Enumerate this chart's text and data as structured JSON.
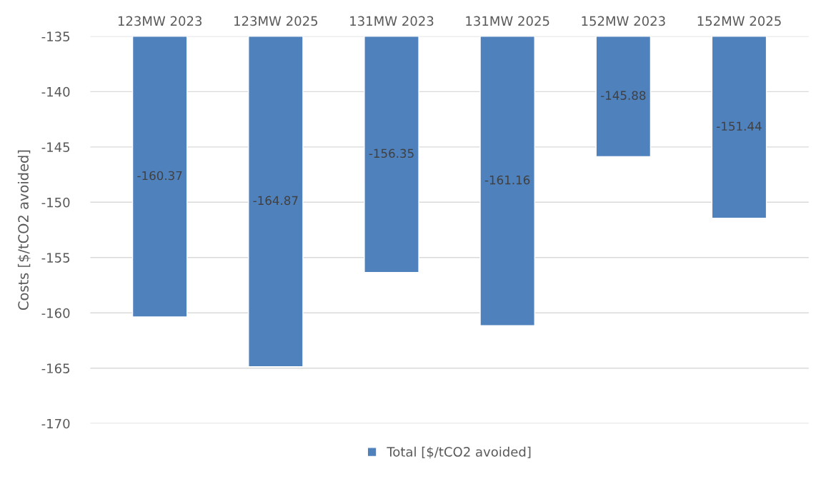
{
  "chart_data": {
    "type": "bar",
    "ylabel": "Costs [$/tCO2 avoided]",
    "categories": [
      "123MW 2023",
      "123MW 2025",
      "131MW 2023",
      "131MW 2025",
      "152MW 2023",
      "152MW 2025"
    ],
    "series": [
      {
        "name": "Total [$/tCO2 avoided]",
        "color": "#4f81bd",
        "values": [
          -160.37,
          -164.87,
          -156.35,
          -161.16,
          -145.88,
          -151.44
        ]
      }
    ],
    "ylim": [
      -170,
      -135
    ],
    "yticks": [
      -170,
      -165,
      -160,
      -155,
      -150,
      -145,
      -140,
      -135
    ],
    "grid": "y",
    "legend": "bottom",
    "data_labels": true
  }
}
